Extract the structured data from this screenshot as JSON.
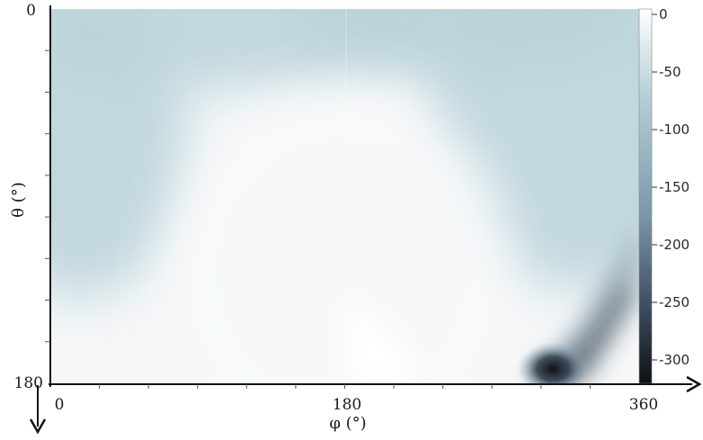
{
  "chart_data": {
    "type": "heatmap",
    "xlabel": "φ (°)",
    "ylabel": "θ (°)",
    "xlim": [
      0,
      360
    ],
    "ylim": [
      0,
      180
    ],
    "x_ticks": [
      "0",
      "180",
      "360"
    ],
    "y_ticks": [
      "0",
      "180"
    ],
    "y_inverted": true,
    "colorbar": {
      "ticks": [
        "0",
        "-50",
        "-100",
        "-150",
        "-200",
        "-250",
        "-300"
      ],
      "range": [
        -320,
        0
      ],
      "colors": {
        "high": "#ffffff",
        "mid_high": "#b8d2da",
        "mid": "#7d97a8",
        "mid_low": "#3c4c5e",
        "low": "#0e1014"
      }
    },
    "colors": {
      "field_light": "#f5f7f8",
      "field_blue": "#b9d3da",
      "hot_spot": "#0f1115"
    },
    "hot_spot": {
      "phi": 330,
      "theta": 175,
      "value": -320
    }
  }
}
